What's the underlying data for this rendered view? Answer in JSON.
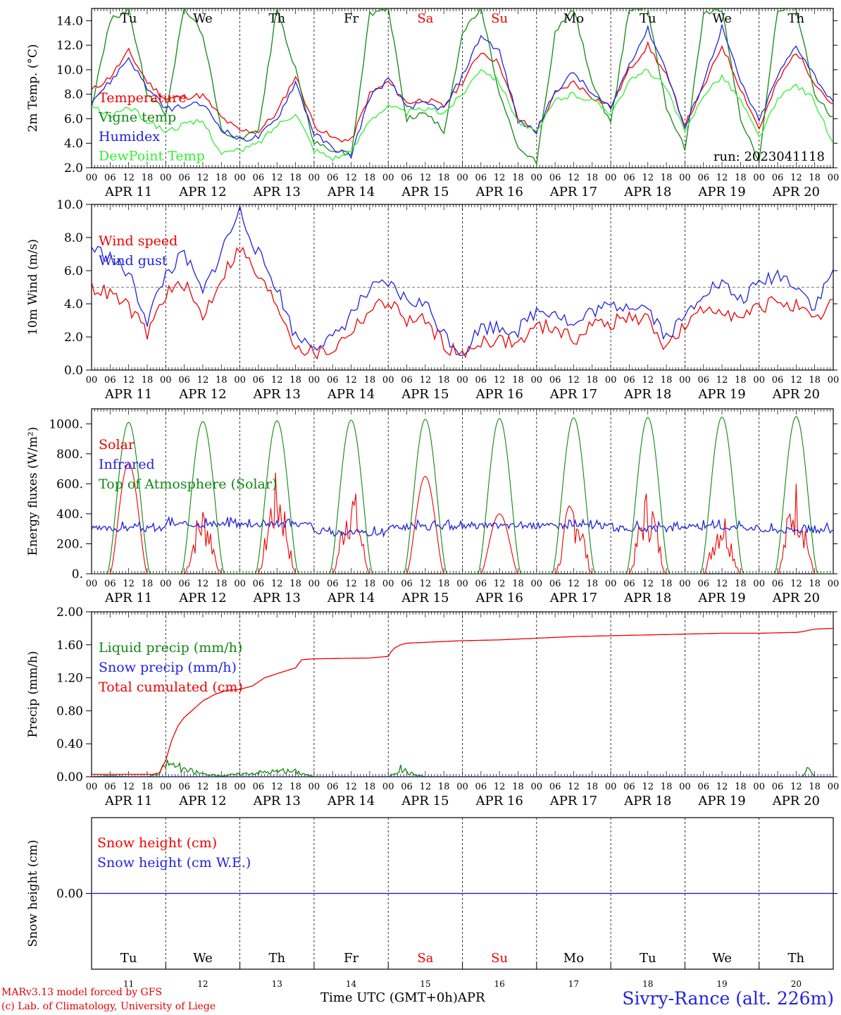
{
  "chart_data": [
    {
      "type": "line",
      "panel": "temperature",
      "ylabel": "2m Temp. (°C)",
      "ylim": [
        2.0,
        15.0
      ],
      "yticks": [
        "2.0",
        "4.0",
        "6.0",
        "8.0",
        "10.0",
        "12.0",
        "14.0"
      ],
      "ytick_values": [
        2,
        4,
        6,
        8,
        10,
        12,
        14
      ],
      "annotation": "run: 2023041118",
      "series": [
        {
          "name": "Temperature",
          "color": "#ee0000",
          "x": [
            0,
            6,
            12,
            18,
            24,
            30,
            36,
            42,
            48,
            54,
            60,
            66,
            72,
            78,
            84,
            90,
            96,
            102,
            108,
            114,
            120,
            126,
            132,
            138,
            144,
            150,
            156,
            162,
            168,
            174,
            180,
            186,
            192,
            198,
            204,
            210,
            216,
            222,
            228,
            234,
            240
          ],
          "values": [
            8.3,
            9.4,
            11.5,
            9.0,
            7.6,
            7.8,
            7.9,
            6.1,
            5.0,
            5.0,
            6.5,
            9.5,
            5.5,
            4.4,
            4.2,
            8.0,
            9.0,
            7.3,
            7.6,
            7.0,
            9.0,
            11.5,
            10.5,
            6.0,
            5.0,
            8.0,
            9.0,
            7.8,
            7.0,
            10.0,
            12.0,
            9.5,
            5.5,
            8.5,
            12.0,
            8.5,
            5.2,
            9.0,
            11.5,
            9.0,
            7.0
          ]
        },
        {
          "name": "Vigne temp",
          "color": "#118811",
          "x": [
            0,
            6,
            12,
            18,
            24,
            30,
            36,
            42,
            48,
            54,
            60,
            66,
            72,
            78,
            84,
            90,
            96,
            102,
            108,
            114,
            120,
            126,
            132,
            138,
            144,
            150,
            156,
            162,
            168,
            174,
            180,
            186,
            192,
            198,
            204,
            210,
            216,
            222,
            228,
            234,
            240
          ],
          "values": [
            7.0,
            14.0,
            15.0,
            8.0,
            6.5,
            15.0,
            13.0,
            5.0,
            4.5,
            5.0,
            15.0,
            10.0,
            4.0,
            3.5,
            3.0,
            14.5,
            15.0,
            6.0,
            6.5,
            5.0,
            13.0,
            15.0,
            8.0,
            3.5,
            2.5,
            13.0,
            15.0,
            9.0,
            5.5,
            15.0,
            15.0,
            7.0,
            3.5,
            14.5,
            15.0,
            6.0,
            2.5,
            15.0,
            15.0,
            8.0,
            6.0
          ]
        },
        {
          "name": "Humidex",
          "color": "#2222dd",
          "x": [
            0,
            6,
            12,
            18,
            24,
            30,
            36,
            42,
            48,
            54,
            60,
            66,
            72,
            78,
            84,
            90,
            96,
            102,
            108,
            114,
            120,
            126,
            132,
            138,
            144,
            150,
            156,
            162,
            168,
            174,
            180,
            186,
            192,
            198,
            204,
            210,
            216,
            222,
            228,
            234,
            240
          ],
          "values": [
            7.5,
            9.0,
            11.0,
            8.5,
            6.8,
            7.0,
            7.2,
            5.2,
            4.3,
            4.5,
            6.0,
            9.0,
            4.8,
            3.6,
            3.0,
            7.8,
            9.2,
            7.0,
            7.2,
            6.8,
            9.5,
            12.8,
            11.5,
            5.8,
            5.0,
            8.2,
            9.8,
            8.0,
            6.8,
            10.5,
            13.3,
            10.0,
            5.2,
            9.0,
            13.5,
            9.0,
            5.8,
            9.5,
            12.0,
            9.5,
            7.2
          ]
        },
        {
          "name": "DewPoint Temp",
          "color": "#33ee33",
          "x": [
            0,
            6,
            12,
            18,
            24,
            30,
            36,
            42,
            48,
            54,
            60,
            66,
            72,
            78,
            84,
            90,
            96,
            102,
            108,
            114,
            120,
            126,
            132,
            138,
            144,
            150,
            156,
            162,
            168,
            174,
            180,
            186,
            192,
            198,
            204,
            210,
            216,
            222,
            228,
            234,
            240
          ],
          "values": [
            7.0,
            6.2,
            7.0,
            5.8,
            5.0,
            5.5,
            5.8,
            3.2,
            3.4,
            4.0,
            5.5,
            6.5,
            3.5,
            2.8,
            3.2,
            6.0,
            7.0,
            6.5,
            6.8,
            6.5,
            8.0,
            10.2,
            9.0,
            5.8,
            4.8,
            7.5,
            8.0,
            7.5,
            6.5,
            9.0,
            10.0,
            8.5,
            4.8,
            8.0,
            9.5,
            7.5,
            4.5,
            7.5,
            8.8,
            7.5,
            3.8
          ]
        }
      ]
    },
    {
      "type": "line",
      "panel": "wind",
      "ylabel": "10m Wind (m/s)",
      "ylim": [
        0.0,
        10.0
      ],
      "yticks": [
        "0.0",
        "2.0",
        "4.0",
        "6.0",
        "8.0",
        "10.0"
      ],
      "ytick_values": [
        0,
        2,
        4,
        6,
        8,
        10
      ],
      "reference_line": 5.0,
      "series": [
        {
          "name": "Wind speed",
          "color": "#ee0000",
          "x": [
            0,
            6,
            12,
            18,
            24,
            30,
            36,
            42,
            48,
            54,
            60,
            66,
            72,
            78,
            84,
            90,
            96,
            102,
            108,
            114,
            120,
            126,
            132,
            138,
            144,
            150,
            156,
            162,
            168,
            174,
            180,
            186,
            192,
            198,
            204,
            210,
            216,
            222,
            228,
            234,
            240
          ],
          "values": [
            5.0,
            4.6,
            3.8,
            2.2,
            4.6,
            5.2,
            3.2,
            5.6,
            7.4,
            5.6,
            4.0,
            1.5,
            1.0,
            1.2,
            2.4,
            3.6,
            4.2,
            3.0,
            3.0,
            1.6,
            0.8,
            1.8,
            1.8,
            1.6,
            2.6,
            2.6,
            1.8,
            2.8,
            2.8,
            3.2,
            3.0,
            1.4,
            2.6,
            3.6,
            3.8,
            3.0,
            3.8,
            4.2,
            3.8,
            2.8,
            4.2
          ]
        },
        {
          "name": "Wind gust",
          "color": "#2222dd",
          "x": [
            0,
            6,
            12,
            18,
            24,
            30,
            36,
            42,
            48,
            54,
            60,
            66,
            72,
            78,
            84,
            90,
            96,
            102,
            108,
            114,
            120,
            126,
            132,
            138,
            144,
            150,
            156,
            162,
            168,
            174,
            180,
            186,
            192,
            198,
            204,
            210,
            216,
            222,
            228,
            234,
            240
          ],
          "values": [
            7.4,
            6.8,
            5.8,
            3.0,
            5.8,
            7.0,
            4.6,
            7.2,
            9.6,
            7.0,
            5.0,
            2.0,
            1.6,
            1.8,
            3.4,
            4.8,
            5.2,
            4.2,
            4.0,
            2.2,
            1.0,
            2.6,
            2.6,
            2.4,
            3.6,
            3.6,
            2.6,
            3.6,
            3.8,
            4.0,
            3.8,
            2.0,
            3.2,
            4.8,
            5.2,
            4.2,
            5.2,
            5.8,
            5.2,
            3.8,
            6.0
          ]
        }
      ]
    },
    {
      "type": "line",
      "panel": "energy",
      "ylabel": "Energy fluxes (W/m²)",
      "ylim": [
        0,
        1100
      ],
      "yticks": [
        "0.",
        "200.",
        "400.",
        "600.",
        "800.",
        "1000."
      ],
      "ytick_values": [
        0,
        200,
        400,
        600,
        800,
        1000
      ],
      "series": [
        {
          "name": "Solar",
          "color": "#ee0000",
          "peaks": [
            740,
            480,
            690,
            620,
            650,
            400,
            560,
            580,
            450,
            650
          ]
        },
        {
          "name": "Infrared",
          "color": "#2222dd",
          "base": [
            300,
            330,
            330,
            270,
            310,
            320,
            320,
            300,
            310,
            290
          ]
        },
        {
          "name": "Top of Atmosphere (Solar)",
          "color": "#118811",
          "peaks": [
            1010,
            1015,
            1020,
            1025,
            1030,
            1035,
            1040,
            1042,
            1045,
            1048
          ]
        }
      ]
    },
    {
      "type": "line",
      "panel": "precip",
      "ylabel": "Precip (mm/h)",
      "ylim": [
        0.0,
        2.0
      ],
      "yticks": [
        "0.00",
        "0.40",
        "0.80",
        "1.20",
        "1.60",
        "2.00"
      ],
      "ytick_values": [
        0,
        0.4,
        0.8,
        1.2,
        1.6,
        2.0
      ],
      "series": [
        {
          "name": "Liquid precip (mm/h)",
          "color": "#118811",
          "x": [
            0,
            6,
            12,
            18,
            22,
            24,
            27,
            30,
            33,
            36,
            42,
            48,
            54,
            60,
            66,
            72,
            96,
            100,
            104,
            108,
            120,
            216,
            230,
            232,
            234,
            240
          ],
          "values": [
            0,
            0.02,
            0,
            0,
            0.05,
            0.25,
            0.22,
            0.12,
            0.1,
            0.05,
            0.02,
            0.05,
            0.08,
            0.1,
            0.1,
            0,
            0,
            0.15,
            0.05,
            0,
            0,
            0,
            0,
            0.18,
            0,
            0
          ]
        },
        {
          "name": "Snow precip (mm/h)",
          "color": "#2222dd",
          "x": [
            0,
            240
          ],
          "values": [
            0,
            0
          ]
        },
        {
          "name": "Total cumulated (cm)",
          "color": "#ee0000",
          "x": [
            0,
            20,
            22,
            24,
            26,
            28,
            30,
            33,
            36,
            40,
            44,
            48,
            52,
            54,
            56,
            60,
            66,
            68,
            72,
            90,
            96,
            97,
            98,
            100,
            102,
            108,
            120,
            132,
            144,
            156,
            168,
            180,
            192,
            204,
            216,
            228,
            230,
            234,
            240
          ],
          "values": [
            0.03,
            0.03,
            0.05,
            0.2,
            0.45,
            0.62,
            0.72,
            0.82,
            0.92,
            1.0,
            1.05,
            1.06,
            1.1,
            1.15,
            1.2,
            1.25,
            1.32,
            1.42,
            1.43,
            1.44,
            1.46,
            1.52,
            1.56,
            1.6,
            1.62,
            1.63,
            1.65,
            1.66,
            1.68,
            1.7,
            1.71,
            1.72,
            1.73,
            1.74,
            1.74,
            1.75,
            1.76,
            1.79,
            1.8
          ]
        }
      ]
    },
    {
      "type": "line",
      "panel": "snow",
      "ylabel": "Snow height (cm)",
      "ylim": [
        -1,
        1
      ],
      "yticks": [
        "0.00"
      ],
      "ytick_values": [
        0
      ],
      "series": [
        {
          "name": "Snow height (cm)",
          "color": "#ee0000",
          "x": [
            0,
            240
          ],
          "values": [
            0,
            0
          ]
        },
        {
          "name": "Snow height (cm W.E.)",
          "color": "#2222dd",
          "x": [
            0,
            240
          ],
          "values": [
            0,
            0
          ]
        }
      ]
    }
  ],
  "x_axis": {
    "hour_ticks": [
      "00",
      "06",
      "12",
      "18"
    ],
    "last_hour": "00",
    "dates": [
      "APR 11",
      "APR 12",
      "APR 13",
      "APR 14",
      "APR 15",
      "APR 16",
      "APR 17",
      "APR 18",
      "APR 19",
      "APR 20"
    ],
    "weekdays": [
      "Tu",
      "We",
      "Th",
      "Fr",
      "Sa",
      "Su",
      "Mo",
      "Tu",
      "We",
      "Th"
    ],
    "weekend_flags": [
      false,
      false,
      false,
      false,
      true,
      true,
      false,
      false,
      false,
      false
    ],
    "day_numbers": [
      "11",
      "12",
      "13",
      "14",
      "15",
      "16",
      "17",
      "18",
      "19",
      "20"
    ],
    "xlabel": "Time UTC (GMT+0h)",
    "month": "APR"
  },
  "footer": {
    "model_line": "MARv3.13 model forced by GFS",
    "lab_line": "(c) Lab. of Climatology, University of Liege",
    "station": "Sivry-Rance (alt. 226m)"
  },
  "colors": {
    "red": "#ee0000",
    "blue": "#2222dd",
    "dark_green": "#118811",
    "light_green": "#33ee33",
    "purple": "#882299"
  }
}
